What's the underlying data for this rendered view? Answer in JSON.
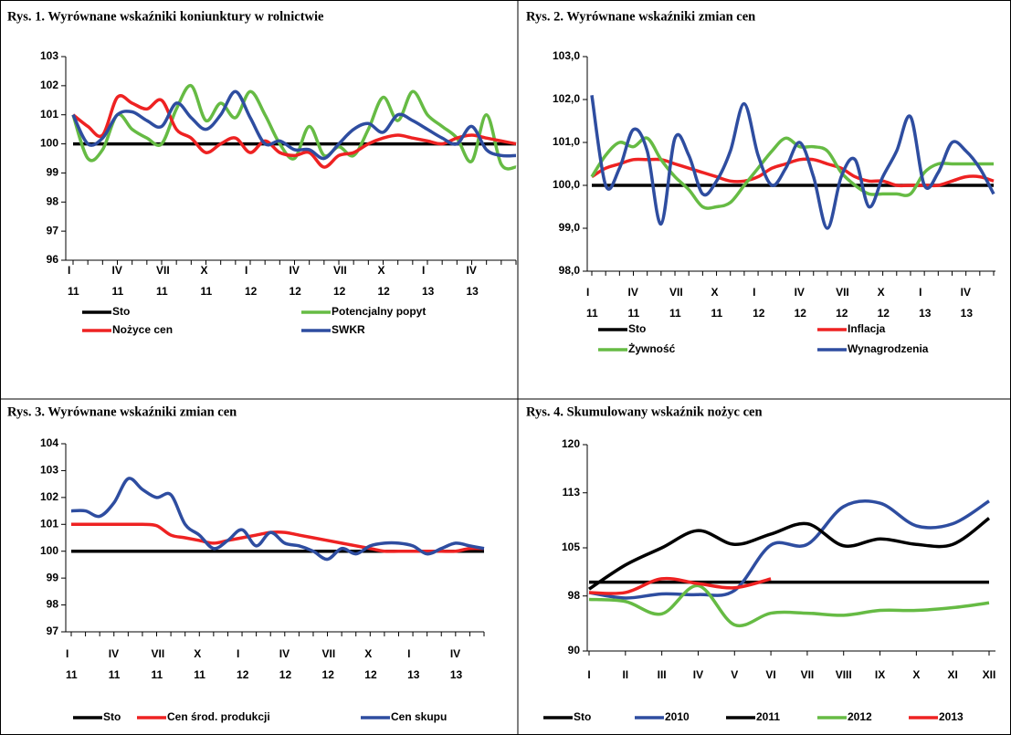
{
  "chart_data": [
    {
      "type": "line",
      "title": "Rys. 1. Wyrównane wskaźniki koniunktury w rolnictwie",
      "categories": [
        "I 11",
        null,
        null,
        "IV 11",
        null,
        null,
        "VII 11",
        null,
        null,
        "X 11",
        null,
        null,
        "I 12",
        null,
        null,
        "IV 12",
        null,
        null,
        "VII 12",
        null,
        null,
        "X 12",
        null,
        null,
        "I 13",
        null,
        null,
        "IV 13",
        null,
        null,
        null
      ],
      "ylim": [
        96,
        103
      ],
      "yticks": [
        96,
        97,
        98,
        99,
        100,
        101,
        102,
        103
      ],
      "series": [
        {
          "name": "Sto",
          "color": "#000000",
          "values": [
            100,
            100,
            100,
            100,
            100,
            100,
            100,
            100,
            100,
            100,
            100,
            100,
            100,
            100,
            100,
            100,
            100,
            100,
            100,
            100,
            100,
            100,
            100,
            100,
            100,
            100,
            100,
            100,
            100,
            100,
            100
          ]
        },
        {
          "name": "Potencjalny popyt",
          "color": "#66bb44",
          "values": [
            101,
            99.5,
            99.8,
            101.0,
            100.5,
            100.2,
            100.0,
            101.2,
            102.0,
            100.8,
            101.4,
            100.9,
            101.8,
            101.0,
            100.0,
            99.5,
            100.6,
            99.6,
            99.9,
            99.6,
            100.5,
            101.6,
            100.8,
            101.8,
            101.0,
            100.6,
            100.2,
            99.4,
            101.0,
            99.3,
            99.2
          ]
        },
        {
          "name": "Nożyce cen",
          "color": "#ee2222",
          "values": [
            101,
            100.6,
            100.3,
            101.6,
            101.4,
            101.2,
            101.5,
            100.5,
            100.2,
            99.7,
            100.0,
            100.2,
            99.7,
            100.1,
            99.7,
            99.6,
            99.7,
            99.2,
            99.6,
            99.7,
            100.0,
            100.2,
            100.3,
            100.2,
            100.1,
            100.0,
            100.2,
            100.3,
            100.2,
            100.1,
            100.0
          ]
        },
        {
          "name": "SWKR",
          "color": "#2e4da0",
          "values": [
            101,
            100.0,
            100.2,
            101.0,
            101.1,
            100.8,
            100.6,
            101.4,
            100.9,
            100.5,
            101.0,
            101.8,
            100.9,
            100.0,
            100.1,
            99.8,
            99.8,
            99.5,
            100.0,
            100.5,
            100.7,
            100.4,
            101.0,
            100.8,
            100.5,
            100.2,
            100.0,
            100.6,
            99.8,
            99.6,
            99.6
          ]
        }
      ]
    },
    {
      "type": "line",
      "title": "Rys. 2. Wyrównane wskaźniki zmian cen",
      "categories": [
        "I 11",
        null,
        null,
        "IV 11",
        null,
        null,
        "VII 11",
        null,
        null,
        "X 11",
        null,
        null,
        "I 12",
        null,
        null,
        "IV 12",
        null,
        null,
        "VII 12",
        null,
        null,
        "X 12",
        null,
        null,
        "I 13",
        null,
        null,
        "IV 13",
        null,
        null
      ],
      "ylim": [
        98,
        103
      ],
      "yticks": [
        {
          "value": 98,
          "label": "98,0"
        },
        {
          "value": 99,
          "label": "99,0"
        },
        {
          "value": 100,
          "label": "100,0"
        },
        {
          "value": 101,
          "label": "101,0"
        },
        {
          "value": 102,
          "label": "102,0"
        },
        {
          "value": 103,
          "label": "103,0"
        }
      ],
      "series": [
        {
          "name": "Sto",
          "color": "#000000",
          "values": [
            100,
            100,
            100,
            100,
            100,
            100,
            100,
            100,
            100,
            100,
            100,
            100,
            100,
            100,
            100,
            100,
            100,
            100,
            100,
            100,
            100,
            100,
            100,
            100,
            100,
            100,
            100,
            100,
            100,
            100
          ]
        },
        {
          "name": "Inflacja",
          "color": "#ee2222",
          "values": [
            100.2,
            100.4,
            100.5,
            100.6,
            100.6,
            100.6,
            100.5,
            100.4,
            100.3,
            100.2,
            100.1,
            100.1,
            100.2,
            100.4,
            100.5,
            100.6,
            100.6,
            100.5,
            100.4,
            100.2,
            100.1,
            100.1,
            100.0,
            100.0,
            100.0,
            100.0,
            100.1,
            100.2,
            100.2,
            100.1
          ]
        },
        {
          "name": "Żywność",
          "color": "#66bb44",
          "values": [
            100.2,
            100.7,
            101.0,
            100.9,
            101.1,
            100.6,
            100.2,
            99.9,
            99.5,
            99.5,
            99.6,
            100.0,
            100.4,
            100.8,
            101.1,
            100.9,
            100.9,
            100.8,
            100.3,
            100.0,
            99.8,
            99.8,
            99.8,
            99.8,
            100.3,
            100.5,
            100.5,
            100.5,
            100.5,
            100.5
          ]
        },
        {
          "name": "Wynagrodzenia",
          "color": "#2e4da0",
          "values": [
            102.1,
            100.0,
            100.4,
            101.3,
            100.8,
            99.1,
            101.1,
            100.7,
            99.8,
            100.1,
            100.8,
            101.9,
            100.7,
            100.0,
            100.4,
            101.0,
            100.2,
            99.0,
            100.2,
            100.6,
            99.5,
            100.2,
            100.8,
            101.6,
            100.0,
            100.3,
            101.0,
            100.8,
            100.4,
            99.8
          ]
        }
      ]
    },
    {
      "type": "line",
      "title": "Rys. 3. Wyrównane wskaźniki zmian cen",
      "categories": [
        "I 11",
        null,
        null,
        "IV 11",
        null,
        null,
        "VII 11",
        null,
        null,
        "X 11",
        null,
        null,
        "I 12",
        null,
        null,
        "IV 12",
        null,
        null,
        "VII 12",
        null,
        null,
        "X 12",
        null,
        null,
        "I 13",
        null,
        null,
        "IV 13",
        null,
        null
      ],
      "ylim": [
        97,
        104
      ],
      "yticks": [
        97,
        98,
        99,
        100,
        101,
        102,
        103,
        104
      ],
      "series": [
        {
          "name": "Sto",
          "color": "#000000",
          "values": [
            100,
            100,
            100,
            100,
            100,
            100,
            100,
            100,
            100,
            100,
            100,
            100,
            100,
            100,
            100,
            100,
            100,
            100,
            100,
            100,
            100,
            100,
            100,
            100,
            100,
            100,
            100,
            100,
            100,
            100
          ]
        },
        {
          "name": "Cen środ. produkcji",
          "color": "#ee2222",
          "values": [
            101,
            101,
            101,
            101,
            101,
            101,
            100.95,
            100.6,
            100.5,
            100.4,
            100.3,
            100.4,
            100.5,
            100.6,
            100.7,
            100.7,
            100.6,
            100.5,
            100.4,
            100.3,
            100.2,
            100.1,
            100.0,
            100.0,
            100.0,
            100.0,
            100.0,
            100.0,
            100.1,
            100.1
          ]
        },
        {
          "name": "Cen skupu",
          "color": "#2e4da0",
          "values": [
            101.5,
            101.5,
            101.3,
            101.8,
            102.7,
            102.3,
            102.0,
            102.1,
            101.0,
            100.6,
            100.1,
            100.4,
            100.8,
            100.2,
            100.7,
            100.3,
            100.2,
            100.0,
            99.7,
            100.1,
            99.9,
            100.2,
            100.3,
            100.3,
            100.2,
            99.9,
            100.1,
            100.3,
            100.2,
            100.1
          ]
        }
      ]
    },
    {
      "type": "line",
      "title": "Rys. 4. Skumulowany wskaźnik nożyc cen",
      "categories": [
        "I",
        "II",
        "III",
        "IV",
        "V",
        "VI",
        "VII",
        "VIII",
        "IX",
        "X",
        "XI",
        "XII"
      ],
      "ylim": [
        90,
        120
      ],
      "yticks": [
        90,
        98,
        105,
        113,
        120
      ],
      "series": [
        {
          "name": "Sto",
          "color": "#000000",
          "values": [
            100,
            100,
            100,
            100,
            100,
            100,
            100,
            100,
            100,
            100,
            100,
            100
          ]
        },
        {
          "name": "2010",
          "color": "#2e4da0",
          "values": [
            98.5,
            97.7,
            98.3,
            98.2,
            98.8,
            105.4,
            105.5,
            111.0,
            111.5,
            108.2,
            108.5,
            111.8
          ]
        },
        {
          "name": "2011",
          "color": "#000000",
          "values": [
            99,
            102.5,
            105,
            107.5,
            105.5,
            107,
            108.5,
            105.3,
            106.3,
            105.5,
            105.5,
            109.3
          ]
        },
        {
          "name": "2012",
          "color": "#66bb44",
          "values": [
            97.5,
            97.2,
            95.4,
            99.5,
            93.8,
            95.5,
            95.5,
            95.2,
            95.9,
            95.9,
            96.3,
            97.0
          ]
        },
        {
          "name": "2013",
          "color": "#ee2222",
          "values": [
            98.5,
            98.5,
            100.5,
            99.8,
            99.2,
            100.5,
            null,
            null,
            null,
            null,
            null,
            null
          ]
        }
      ]
    }
  ]
}
